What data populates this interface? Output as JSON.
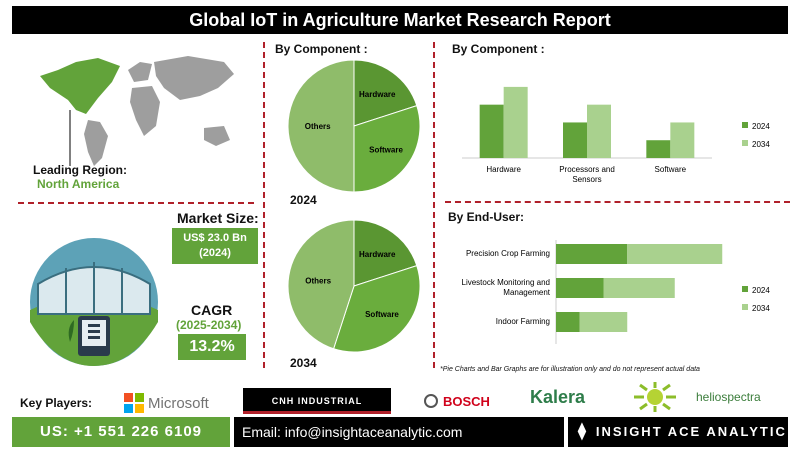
{
  "title": "Global  IoT in Agriculture Market Research Report",
  "leading_region": {
    "label": "Leading Region:",
    "value": "North America"
  },
  "market_size": {
    "label": "Market Size:",
    "value_line1": "US$ 23.0 Bn",
    "value_line2": "(2024)"
  },
  "cagr": {
    "label": "CAGR",
    "period": "(2025-2034)",
    "value": "13.2%"
  },
  "pie_section": {
    "heading": "By Component :",
    "year_top": "2024",
    "year_bottom": "2034"
  },
  "bar_component_heading": "By Component  :",
  "bar_enduser_heading": "By End-User:",
  "disclaimer": "*Pie Charts and Bar Graphs are for illustration only and do not represent actual data",
  "key_players_label": "Key Players:",
  "key_players": [
    "Microsoft",
    "CNH INDUSTRIAL",
    "BOSCH",
    "Kalera",
    "heliospectra"
  ],
  "footer": {
    "phone": "US: +1 551 226 6109",
    "email": "Email: info@insightaceanalytic.com",
    "brand": "INSIGHT ACE ANALYTIC"
  },
  "colors": {
    "dark_green": "#62a33a",
    "light_green": "#a9d18e",
    "mid_green": "#8fbc6a",
    "accent_red": "#b0202a"
  },
  "chart_data": [
    {
      "type": "pie",
      "title": "2024",
      "categories": [
        "Hardware",
        "Software",
        "Others"
      ],
      "values": [
        20,
        30,
        50
      ]
    },
    {
      "type": "pie",
      "title": "2034",
      "categories": [
        "Hardware",
        "Software",
        "Others"
      ],
      "values": [
        20,
        35,
        45
      ]
    },
    {
      "type": "bar",
      "orientation": "vertical",
      "categories": [
        "Hardware",
        "Processors and Sensors",
        "Software"
      ],
      "series": [
        {
          "name": "2024",
          "values": [
            3.0,
            2.0,
            1.0
          ]
        },
        {
          "name": "2034",
          "values": [
            4.0,
            3.0,
            2.0
          ]
        }
      ],
      "ylim": [
        0,
        4.5
      ],
      "legend": "right"
    },
    {
      "type": "bar",
      "orientation": "horizontal",
      "stacked": true,
      "categories": [
        "Precision Crop Farming",
        "Livestock Monitoring and Management",
        "Indoor Farming"
      ],
      "series": [
        {
          "name": "2024",
          "values": [
            1.5,
            1.0,
            0.5
          ]
        },
        {
          "name": "2034",
          "values": [
            2.0,
            1.5,
            1.0
          ]
        }
      ],
      "xlim": [
        0,
        4
      ],
      "legend": "right"
    }
  ]
}
